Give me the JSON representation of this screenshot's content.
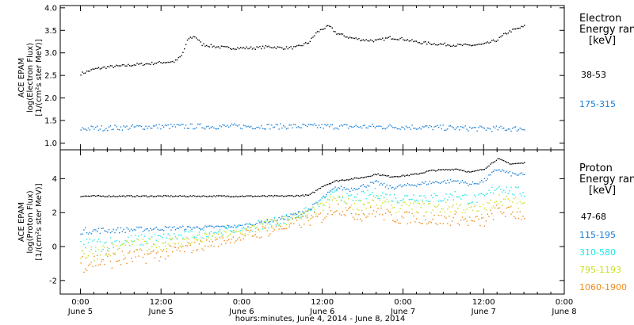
{
  "chart_data": [
    {
      "type": "scatter",
      "panel": "electron",
      "ylabel": [
        "ACE EPAM",
        "log(Electron Flux)",
        "[1/(cm²s ster MeV)]"
      ],
      "ylim": [
        0.85,
        4.05
      ],
      "yticks": [
        1.0,
        1.5,
        2.0,
        2.5,
        3.0,
        3.5,
        4.0
      ],
      "ytick_labels": [
        "1.0",
        "1.5",
        "2.0",
        "2.5",
        "3.0",
        "3.5",
        "4.0"
      ],
      "legend_title": [
        "Electron",
        "Energy range",
        "[keV]"
      ],
      "series": [
        {
          "name": "38-53",
          "color": "#000000",
          "x_hours": [
            0,
            2,
            4,
            6,
            8,
            10,
            12,
            14,
            15,
            16,
            17,
            18,
            20,
            22,
            24,
            26,
            28,
            30,
            32,
            34,
            35,
            36,
            37,
            38,
            40,
            42,
            44,
            46,
            48,
            50,
            52,
            54,
            56,
            58,
            60,
            61,
            62,
            63,
            64,
            66
          ],
          "y": [
            2.55,
            2.65,
            2.7,
            2.72,
            2.75,
            2.77,
            2.8,
            2.82,
            2.95,
            3.33,
            3.38,
            3.2,
            3.15,
            3.12,
            3.12,
            3.12,
            3.15,
            3.12,
            3.13,
            3.25,
            3.45,
            3.55,
            3.6,
            3.45,
            3.35,
            3.3,
            3.28,
            3.35,
            3.32,
            3.25,
            3.22,
            3.2,
            3.18,
            3.18,
            3.2,
            3.25,
            3.3,
            3.42,
            3.5,
            3.6
          ]
        },
        {
          "name": "175-315",
          "color": "#1a7fd6",
          "x_hours": [
            0,
            12,
            24,
            36,
            48,
            60,
            66
          ],
          "y": [
            1.33,
            1.38,
            1.38,
            1.38,
            1.37,
            1.33,
            1.33
          ]
        }
      ]
    },
    {
      "type": "scatter",
      "panel": "proton",
      "ylabel": [
        "ACE EPAM",
        "log(Proton Flux)",
        "[1/(cm²s ster MeV)]"
      ],
      "ylim": [
        -2.8,
        5.7
      ],
      "yticks": [
        -2,
        0,
        2,
        4
      ],
      "ytick_labels": [
        "-2",
        "0",
        "2",
        "4"
      ],
      "legend_title": [
        "Proton",
        "Energy range",
        "[keV]"
      ],
      "series": [
        {
          "name": "47-68",
          "color": "#000000",
          "x_hours": [
            0,
            12,
            24,
            30,
            34,
            36,
            38,
            40,
            42,
            44,
            46,
            48,
            50,
            52,
            54,
            56,
            58,
            60,
            62,
            64,
            66
          ],
          "y": [
            3.0,
            3.0,
            3.0,
            3.0,
            3.05,
            3.6,
            3.9,
            4.0,
            4.1,
            4.3,
            4.15,
            4.2,
            4.3,
            4.5,
            4.55,
            4.6,
            4.4,
            4.6,
            5.2,
            4.9,
            4.95
          ]
        },
        {
          "name": "115-195",
          "color": "#1a7fd6",
          "x_hours": [
            0,
            6,
            12,
            18,
            24,
            30,
            34,
            36,
            38,
            40,
            42,
            44,
            46,
            48,
            50,
            52,
            54,
            56,
            58,
            60,
            62,
            64,
            66
          ],
          "y": [
            0.95,
            1.0,
            1.1,
            1.15,
            1.25,
            1.7,
            2.2,
            2.9,
            3.5,
            3.4,
            3.6,
            3.8,
            3.5,
            3.6,
            3.7,
            3.8,
            3.85,
            3.9,
            3.7,
            3.9,
            4.6,
            4.3,
            4.25
          ]
        },
        {
          "name": "310-580",
          "color": "#1ee6e6",
          "x_hours": [
            0,
            6,
            12,
            18,
            24,
            30,
            34,
            36,
            38,
            40,
            42,
            44,
            46,
            48,
            50,
            52,
            54,
            56,
            58,
            60,
            62,
            64,
            66
          ],
          "y": [
            0.05,
            0.3,
            0.5,
            0.8,
            1.1,
            1.6,
            2.1,
            2.7,
            3.1,
            2.8,
            3.0,
            3.2,
            2.9,
            2.9,
            3.0,
            2.9,
            2.9,
            3.1,
            2.8,
            2.9,
            3.6,
            3.3,
            3.2
          ]
        },
        {
          "name": "795-1193",
          "color": "#cbe01a",
          "x_hours": [
            0,
            6,
            12,
            18,
            24,
            30,
            34,
            36,
            38,
            40,
            42,
            44,
            46,
            48,
            50,
            52,
            54,
            56,
            58,
            60,
            62,
            64,
            66
          ],
          "y": [
            -0.4,
            -0.1,
            0.2,
            0.5,
            0.9,
            1.5,
            1.9,
            2.4,
            2.9,
            2.5,
            2.5,
            2.7,
            2.4,
            2.3,
            2.4,
            2.3,
            2.3,
            2.4,
            2.2,
            2.2,
            2.9,
            2.6,
            2.6
          ]
        },
        {
          "name": "1060-1900",
          "color": "#f08a1a",
          "x_hours": [
            0,
            6,
            12,
            18,
            24,
            30,
            34,
            36,
            38,
            40,
            42,
            44,
            46,
            48,
            50,
            52,
            54,
            56,
            58,
            60,
            62,
            64,
            66
          ],
          "y": [
            -0.9,
            -0.7,
            -0.4,
            0.1,
            0.6,
            1.2,
            1.6,
            1.8,
            2.4,
            2.0,
            1.9,
            2.1,
            1.8,
            1.7,
            1.8,
            1.6,
            1.6,
            1.7,
            1.5,
            1.5,
            2.2,
            2.0,
            1.9
          ]
        }
      ]
    }
  ],
  "x_axis": {
    "xlim_hours": [
      -3,
      72
    ],
    "ticks_hours": [
      0,
      12,
      24,
      36,
      48,
      60,
      72
    ],
    "tick_time_labels": [
      "0:00",
      "12:00",
      "0:00",
      "12:00",
      "0:00",
      "12:00",
      "0:00"
    ],
    "tick_date_labels": [
      "June 5",
      "June 5",
      "June 6",
      "June 6",
      "June 7",
      "June 7",
      "June 8"
    ],
    "xlabel": "hours:minutes, June 4, 2014 - June 8, 2014"
  }
}
